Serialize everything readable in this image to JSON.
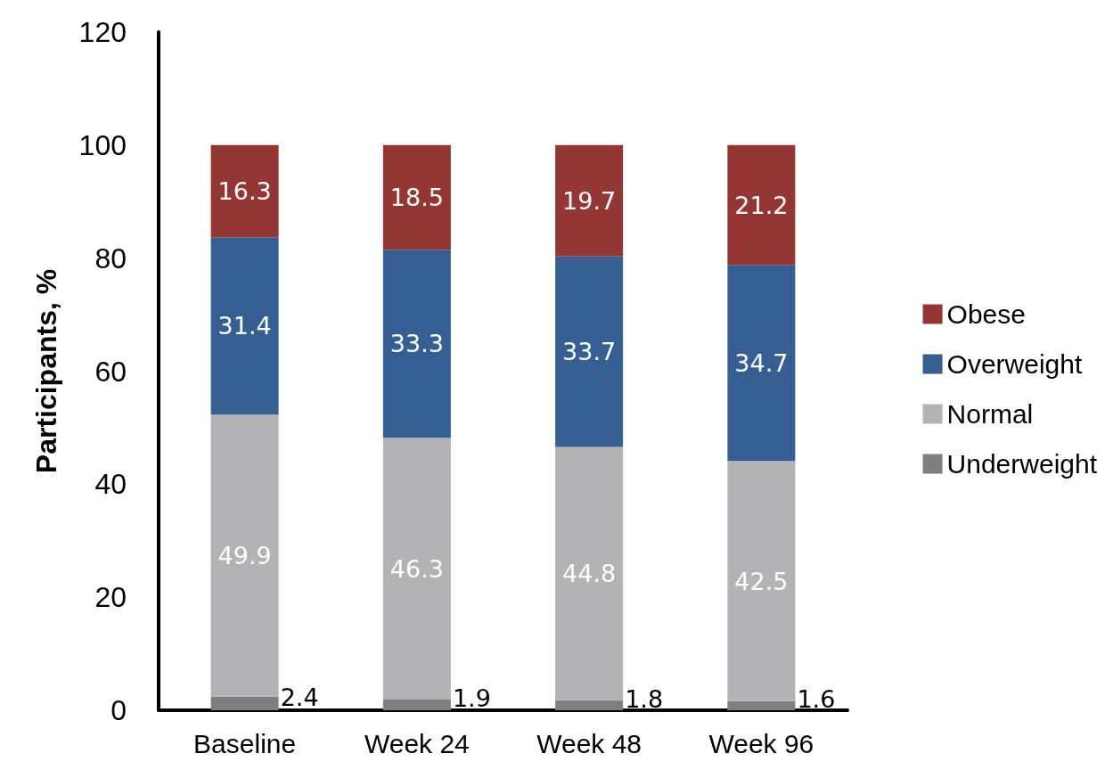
{
  "chart_data": {
    "type": "bar",
    "stacked": true,
    "ylabel": "Participants, %",
    "categories": [
      "Baseline",
      "Week 24",
      "Week 48",
      "Week 96"
    ],
    "series": [
      {
        "name": "Underweight",
        "color": "#7f7f7f",
        "values": [
          2.4,
          1.9,
          1.8,
          1.6
        ]
      },
      {
        "name": "Normal",
        "color": "#b3b3b5",
        "values": [
          49.9,
          46.3,
          44.8,
          42.5
        ]
      },
      {
        "name": "Overweight",
        "color": "#355f92",
        "values": [
          31.4,
          33.3,
          33.7,
          34.7
        ]
      },
      {
        "name": "Obese",
        "color": "#943634",
        "values": [
          16.3,
          18.5,
          19.7,
          21.2
        ]
      }
    ],
    "ylim": [
      0,
      120
    ],
    "yticks": [
      0,
      20,
      40,
      60,
      80,
      100,
      120
    ],
    "grid": false,
    "legend": "right",
    "data_labels": true
  }
}
